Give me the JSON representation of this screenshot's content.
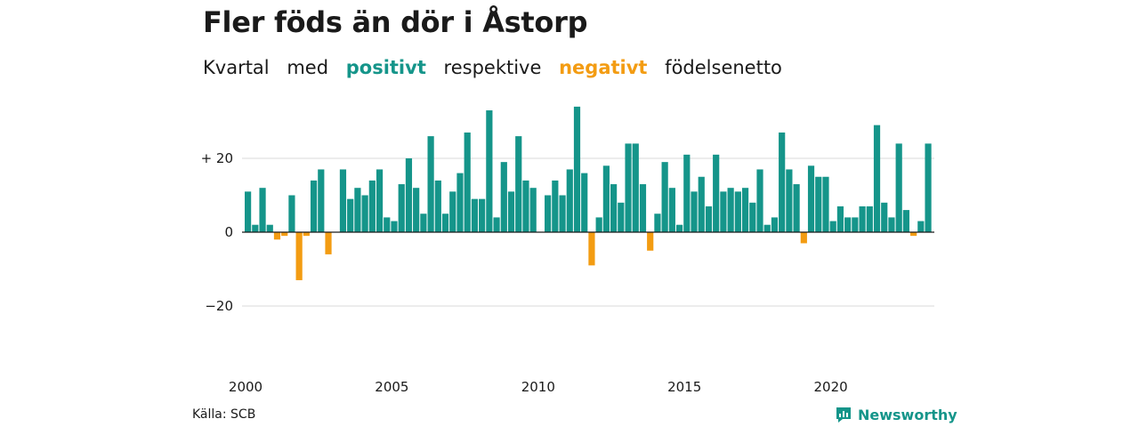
{
  "title": "Fler föds än dör i Åstorp",
  "subtitle": {
    "part1": "Kvartal",
    "part2": "med",
    "positive": "positivt",
    "part3": "respektive",
    "negative": "negativt",
    "part4": "födelsenetto"
  },
  "source": "Källa: SCB",
  "brand": "Newsworthy",
  "colors": {
    "positive": "#15958a",
    "negative": "#f39c12",
    "grid": "#d9d9d9",
    "axis": "#1a1a1a"
  },
  "chart_data": {
    "type": "bar",
    "x_start": "2000 Q1",
    "x_tick_labels": [
      "2000",
      "2005",
      "2010",
      "2015",
      "2020"
    ],
    "y_tick_labels": [
      "+ 20",
      "0",
      "−20"
    ],
    "y_ticks": [
      20,
      0,
      -20
    ],
    "ylim": [
      -25,
      37
    ],
    "grid": true,
    "values": [
      11,
      2,
      12,
      2,
      -2,
      -1,
      10,
      -13,
      -1,
      14,
      17,
      -6,
      null,
      17,
      9,
      12,
      10,
      14,
      17,
      4,
      3,
      13,
      20,
      12,
      5,
      26,
      14,
      5,
      11,
      16,
      27,
      9,
      9,
      33,
      4,
      19,
      11,
      26,
      14,
      12,
      null,
      10,
      14,
      10,
      17,
      34,
      16,
      -9,
      4,
      18,
      13,
      8,
      24,
      24,
      13,
      -5,
      5,
      19,
      12,
      2,
      21,
      11,
      15,
      7,
      21,
      11,
      12,
      11,
      12,
      8,
      17,
      2,
      4,
      27,
      17,
      13,
      -3,
      18,
      15,
      15,
      3,
      7,
      4,
      4,
      7,
      7,
      29,
      8,
      4,
      24,
      6,
      -1,
      3,
      24
    ]
  }
}
